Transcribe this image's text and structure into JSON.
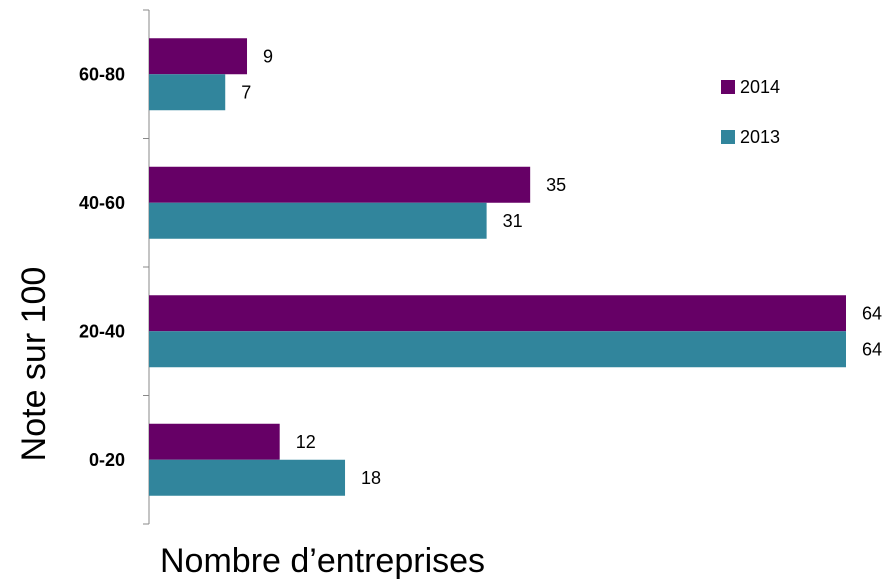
{
  "chart_data": {
    "type": "bar",
    "orientation": "horizontal",
    "categories": [
      "0-20",
      "20-40",
      "40-60",
      "60-80"
    ],
    "series": [
      {
        "name": "2014",
        "color": "#660066",
        "values": [
          12,
          64,
          35,
          9
        ]
      },
      {
        "name": "2013",
        "color": "#31859c",
        "values": [
          18,
          64,
          31,
          7
        ]
      }
    ],
    "xlabel": "Nombre d’entreprises",
    "ylabel": "Note sur 100",
    "xlim": [
      0,
      64
    ],
    "grid": false,
    "legend": "top-right"
  }
}
